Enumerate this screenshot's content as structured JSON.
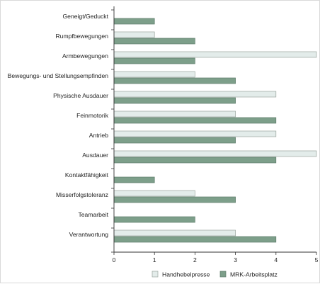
{
  "chart_data": {
    "type": "bar",
    "orientation": "horizontal",
    "categories": [
      "Geneigt/Geduckt",
      "Rumpfbewegungen",
      "Armbewegungen",
      "Bewegungs- und Stellungsempfinden",
      "Physische Ausdauer",
      "Feinmotorik",
      "Antrieb",
      "Ausdauer",
      "Kontaktfähigkeit",
      "Misserfolgstoleranz",
      "Teamarbeit",
      "Verantwortung"
    ],
    "series": [
      {
        "name": "Handhebelpresse",
        "values": [
          0,
          1,
          5,
          2,
          4,
          3,
          4,
          5,
          0,
          2,
          0,
          3
        ],
        "color": "#e3ecea"
      },
      {
        "name": "MRK-Arbeitsplatz",
        "values": [
          1,
          2,
          2,
          3,
          3,
          4,
          3,
          4,
          1,
          3,
          2,
          4
        ],
        "color": "#7d9f8a"
      }
    ],
    "xlim": [
      0,
      5
    ],
    "xticks": [
      0,
      1,
      2,
      3,
      4,
      5
    ],
    "grid": false,
    "legend_position": "bottom-right",
    "edge_color": "#9aa59e"
  }
}
